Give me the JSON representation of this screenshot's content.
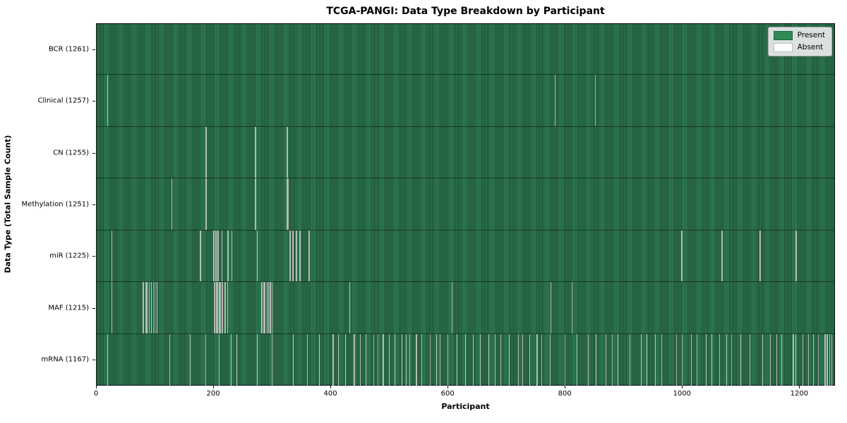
{
  "colors": {
    "present": "#2e8b57",
    "absent": "#ffffff",
    "absent_line": "#b5bcb5",
    "plot_stripe_light": "#2e7d53",
    "plot_stripe_dark": "#1e4b33",
    "legend_background": "#eeeeee",
    "axis_border": "#0b0b0b"
  },
  "chart_data": {
    "type": "heatmap",
    "title": "TCGA-PANGI: Data Type Breakdown by Participant",
    "xlabel": "Participant",
    "ylabel": "Data Type (Total Sample Count)",
    "legend_labels": [
      "Present",
      "Absent"
    ],
    "legend_position": "upper right",
    "grid": false,
    "x_ticks": [
      0,
      200,
      400,
      600,
      800,
      1000,
      1200
    ],
    "xlim": [
      0,
      1261
    ],
    "total_participants": 1261,
    "rows": [
      {
        "name": "BCR",
        "label": "BCR (1261)",
        "total_sample_count": 1261,
        "absent_count": 0,
        "absent_indices": []
      },
      {
        "name": "Clinical",
        "label": "Clinical (1257)",
        "total_sample_count": 1257,
        "absent_count": 4,
        "absent_indices": [
          19,
          20,
          783,
          852
        ]
      },
      {
        "name": "CN",
        "label": "CN (1255)",
        "total_sample_count": 1255,
        "absent_count": 6,
        "absent_indices": [
          187,
          188,
          271,
          272,
          325,
          326
        ]
      },
      {
        "name": "Methylation",
        "label": "Methylation (1251)",
        "total_sample_count": 1251,
        "absent_count": 10,
        "absent_indices": [
          129,
          187,
          188,
          271,
          272,
          273,
          325,
          326,
          327,
          328
        ]
      },
      {
        "name": "miR",
        "label": "miR (1225)",
        "total_sample_count": 1225,
        "absent_count": 36,
        "absent_indices": [
          26,
          177,
          178,
          200,
          201,
          204,
          205,
          207,
          208,
          214,
          215,
          224,
          225,
          231,
          232,
          274,
          275,
          330,
          331,
          335,
          336,
          341,
          342,
          347,
          348,
          363,
          364,
          999,
          1000,
          1067,
          1068,
          1132,
          1133,
          1193,
          1194,
          1195
        ]
      },
      {
        "name": "MAF",
        "label": "MAF (1215)",
        "total_sample_count": 1215,
        "absent_count": 46,
        "absent_indices": [
          26,
          80,
          81,
          84,
          86,
          87,
          90,
          91,
          94,
          97,
          98,
          100,
          103,
          104,
          201,
          202,
          203,
          205,
          206,
          207,
          210,
          211,
          212,
          214,
          215,
          216,
          219,
          220,
          221,
          224,
          282,
          283,
          285,
          287,
          288,
          291,
          292,
          294,
          296,
          297,
          298,
          300,
          432,
          607,
          776,
          812
        ]
      },
      {
        "name": "mRNA",
        "label": "mRNA (1167)",
        "total_sample_count": 1167,
        "absent_count": 94,
        "absent_indices": [
          19,
          125,
          160,
          187,
          210,
          230,
          240,
          274,
          300,
          336,
          360,
          380,
          404,
          405,
          413,
          425,
          440,
          441,
          450,
          460,
          473,
          480,
          489,
          490,
          500,
          510,
          521,
          522,
          529,
          535,
          546,
          547,
          555,
          570,
          580,
          586,
          600,
          615,
          616,
          630,
          643,
          655,
          670,
          680,
          690,
          705,
          720,
          721,
          728,
          740,
          752,
          753,
          760,
          775,
          800,
          820,
          840,
          853,
          870,
          880,
          890,
          910,
          930,
          940,
          954,
          965,
          990,
          1000,
          1015,
          1025,
          1040,
          1050,
          1064,
          1075,
          1084,
          1100,
          1115,
          1137,
          1150,
          1161,
          1170,
          1189,
          1190,
          1194,
          1205,
          1215,
          1224,
          1232,
          1243,
          1244,
          1247,
          1248,
          1251,
          1255
        ]
      }
    ]
  }
}
